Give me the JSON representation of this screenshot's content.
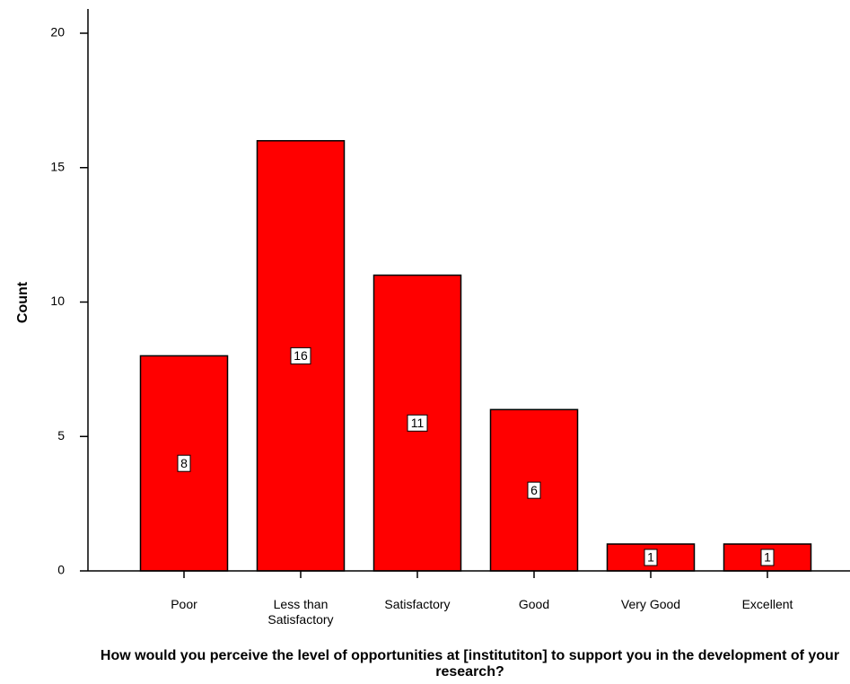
{
  "chart_data": {
    "type": "bar",
    "categories": [
      "Poor",
      "Less than Satisfactory",
      "Satisfactory",
      "Good",
      "Very Good",
      "Excellent"
    ],
    "category_lines": [
      [
        "Poor"
      ],
      [
        "Less than",
        "Satisfactory"
      ],
      [
        "Satisfactory"
      ],
      [
        "Good"
      ],
      [
        "Very Good"
      ],
      [
        "Excellent"
      ]
    ],
    "values": [
      8,
      16,
      11,
      6,
      1,
      1
    ],
    "data_labels": [
      "8",
      "16",
      "11",
      "6",
      "1",
      "1"
    ],
    "title": "",
    "xlabel": "How would you perceive the level of opportunities at [institutiton] to support you in the development of your research?",
    "ylabel": "Count",
    "ylim": [
      0,
      20
    ],
    "yticks": [
      0,
      5,
      10,
      15,
      20
    ],
    "grid": false,
    "bar_color": "#ff0000",
    "bar_edge_color": "#000000"
  }
}
